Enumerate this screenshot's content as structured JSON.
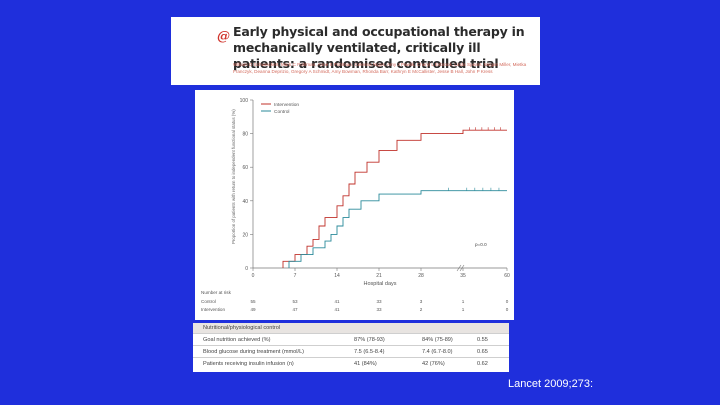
{
  "title_panel": {
    "logo": "@",
    "title": "Early physical and occupational therapy in mechanically ventilated, critically ill patients: a randomised controlled trial",
    "authors": "William D Schweickert, Mark C Pohlman, Anne S Pohlman, Celerina Nigos, Amy J Pawlik, Cheryl L Esbrook, Linda Spears, Megan Miller, Mietka Franczyk, Deanna Deprizio, Gregory A Schmidt, Amy Bowman, Rhonda Barr, Kathryn E McCallister, Jesse B Hall, John P Kress"
  },
  "chart_data": {
    "type": "line",
    "title": "",
    "xlabel": "Hospital days",
    "ylabel": "Proportion of patients with return to independent functional status (%)",
    "xlim": [
      0,
      60
    ],
    "ylim": [
      0,
      100
    ],
    "xticks": [
      0,
      7,
      14,
      21,
      28,
      35,
      60
    ],
    "yticks": [
      0,
      20,
      40,
      60,
      80,
      100
    ],
    "xtick_labels": [
      "0",
      "7",
      "14",
      "21",
      "28",
      "35",
      "60"
    ],
    "ytick_labels": [
      "0",
      "20",
      "40",
      "60",
      "80",
      "100"
    ],
    "legend": {
      "placement": "top-left",
      "entries": [
        "Intervention",
        "Control"
      ]
    },
    "annotation": "p=0.0",
    "series": [
      {
        "name": "Intervention",
        "color": "#c0302a",
        "steps": [
          [
            5,
            0
          ],
          [
            5,
            4
          ],
          [
            7,
            4
          ],
          [
            7,
            8
          ],
          [
            9,
            8
          ],
          [
            9,
            13
          ],
          [
            10,
            13
          ],
          [
            10,
            17
          ],
          [
            11,
            17
          ],
          [
            11,
            25
          ],
          [
            12,
            25
          ],
          [
            12,
            30
          ],
          [
            14,
            30
          ],
          [
            14,
            37
          ],
          [
            15,
            37
          ],
          [
            15,
            43
          ],
          [
            16,
            43
          ],
          [
            16,
            50
          ],
          [
            17,
            50
          ],
          [
            17,
            57
          ],
          [
            19,
            57
          ],
          [
            19,
            63
          ],
          [
            21,
            63
          ],
          [
            21,
            70
          ],
          [
            24,
            70
          ],
          [
            24,
            76
          ],
          [
            28,
            76
          ],
          [
            28,
            80
          ],
          [
            35,
            80
          ],
          [
            35,
            82
          ],
          [
            60,
            82
          ]
        ]
      },
      {
        "name": "Control",
        "color": "#2a8a9a",
        "steps": [
          [
            6,
            0
          ],
          [
            6,
            4
          ],
          [
            8,
            4
          ],
          [
            8,
            8
          ],
          [
            10,
            8
          ],
          [
            10,
            12
          ],
          [
            12,
            12
          ],
          [
            12,
            16
          ],
          [
            13,
            16
          ],
          [
            13,
            20
          ],
          [
            14,
            20
          ],
          [
            14,
            25
          ],
          [
            15,
            25
          ],
          [
            15,
            30
          ],
          [
            16,
            30
          ],
          [
            16,
            35
          ],
          [
            18,
            35
          ],
          [
            18,
            40
          ],
          [
            21,
            40
          ],
          [
            21,
            44
          ],
          [
            28,
            44
          ],
          [
            28,
            46
          ],
          [
            60,
            46
          ]
        ]
      }
    ],
    "risk_table": {
      "header": "Number at risk",
      "rows": [
        {
          "label": "Control",
          "values": [
            "55",
            "53",
            "41",
            "33",
            "3",
            "1",
            "0"
          ]
        },
        {
          "label": "Intervention",
          "values": [
            "49",
            "47",
            "41",
            "33",
            "2",
            "1",
            "0"
          ]
        }
      ]
    }
  },
  "outcome_table": {
    "header": "Nutritional/physiological control",
    "rows": [
      {
        "label": "Goal nutrition achieved (%)",
        "v1": "87% (78-93)",
        "v2": "84% (75-89)",
        "p": "0.55"
      },
      {
        "label": "Blood glucose during treatment (mmol/L)",
        "v1": "7.5 (6.5-8.4)",
        "v2": "7.4 (6.7-8.0)",
        "p": "0.65"
      },
      {
        "label": "Patients receiving insulin infusion (n)",
        "v1": "41 (84%)",
        "v2": "42 (76%)",
        "p": "0.62"
      }
    ]
  },
  "citation": "Lancet 2009;273:"
}
